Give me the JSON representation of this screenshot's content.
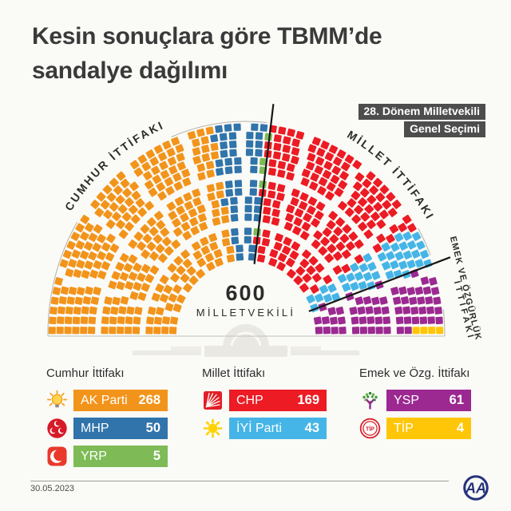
{
  "title": {
    "line1": "Kesin sonuçlara göre TBMM’de",
    "line2": "sandalye dağılımı"
  },
  "badge": {
    "line1": "28. Dönem Milletvekili",
    "line2": "Genel Seçimi",
    "bg": "#4D4D4D"
  },
  "chart_data": {
    "type": "parliament-hemicycle",
    "total_seats": 600,
    "total_label": "600",
    "total_sublabel": "MİLLETVEKİLİ",
    "series": [
      {
        "party": "AK Parti",
        "seats": 268,
        "color": "#F2941B",
        "alliance": "Cumhur İttifakı"
      },
      {
        "party": "MHP",
        "seats": 50,
        "color": "#3074AB",
        "alliance": "Cumhur İttifakı"
      },
      {
        "party": "YRP",
        "seats": 5,
        "color": "#7EBB56",
        "alliance": "Cumhur İttifakı"
      },
      {
        "party": "CHP",
        "seats": 169,
        "color": "#EC1B24",
        "alliance": "Millet İttifakı"
      },
      {
        "party": "İYİ Parti",
        "seats": 43,
        "color": "#45B5E7",
        "alliance": "Millet İttifakı"
      },
      {
        "party": "YSP",
        "seats": 61,
        "color": "#9B2991",
        "alliance": "Emek ve Özgürlük İttifakı"
      },
      {
        "party": "TİP",
        "seats": 4,
        "color": "#FFC608",
        "alliance": "Emek ve Özgürlük İttifakı"
      }
    ],
    "arc_labels": {
      "left": "CUMHUR İTTİFAKI",
      "right": "MİLLET İTTİFAKI",
      "bottom_right_line1": "EMEK VE ÖZGÜRLÜK",
      "bottom_right_line2": "İTTİFAKI"
    },
    "divider_color": "#161616"
  },
  "legend": {
    "groups": [
      {
        "header": "Cumhur İttifakı",
        "rows": [
          {
            "party": "AK Parti",
            "value": "268",
            "color": "#F2941B",
            "logo": "akparti-logo"
          },
          {
            "party": "MHP",
            "value": "50",
            "color": "#3074AB",
            "logo": "mhp-logo"
          },
          {
            "party": "YRP",
            "value": "5",
            "color": "#7EBB56",
            "logo": "yrp-logo"
          }
        ]
      },
      {
        "header": "Millet İttifakı",
        "rows": [
          {
            "party": "CHP",
            "value": "169",
            "color": "#EC1B24",
            "logo": "chp-logo"
          },
          {
            "party": "İYİ Parti",
            "value": "43",
            "color": "#45B5E7",
            "logo": "iyi-logo"
          }
        ]
      },
      {
        "header": "Emek ve Özg. İttifakı",
        "rows": [
          {
            "party": "YSP",
            "value": "61",
            "color": "#9B2991",
            "logo": "ysp-logo"
          },
          {
            "party": "TİP",
            "value": "4",
            "color": "#FFC608",
            "logo": "tip-logo"
          }
        ]
      }
    ]
  },
  "footer": {
    "date": "30.05.2023",
    "agency": "AA"
  }
}
